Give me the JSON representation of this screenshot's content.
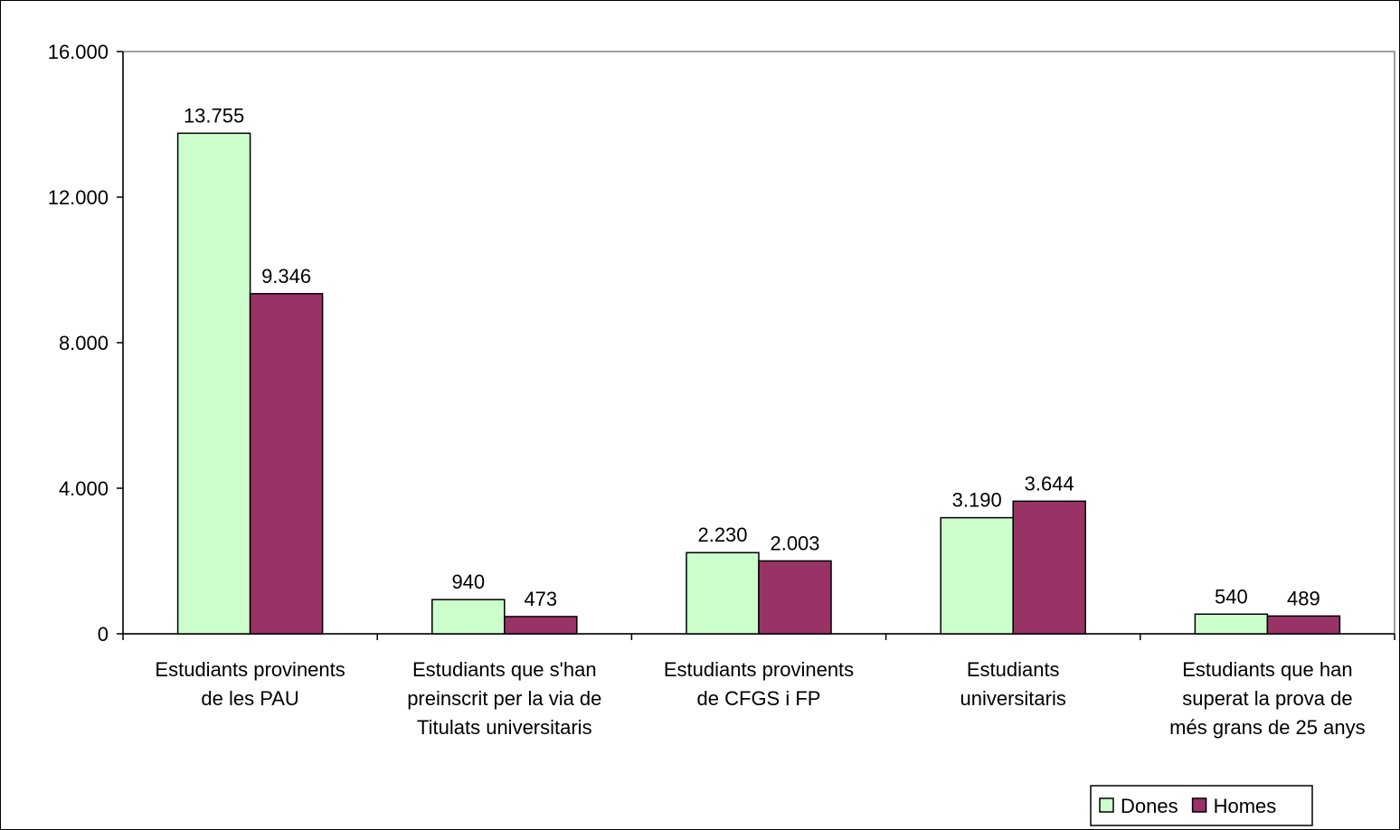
{
  "chart_data": {
    "type": "bar",
    "categories": [
      [
        "Estudiants provinents",
        "de les PAU"
      ],
      [
        "Estudiants que s'han",
        "preinscrit per la via de",
        "Titulats universitaris"
      ],
      [
        "Estudiants provinents",
        "de CFGS i FP"
      ],
      [
        "Estudiants",
        "universitaris"
      ],
      [
        "Estudiants que han",
        "superat la prova de",
        "més grans de 25 anys"
      ]
    ],
    "series": [
      {
        "name": "Dones",
        "color": "#ccffcc",
        "values": [
          13755,
          940,
          2230,
          3190,
          540
        ],
        "labels": [
          "13.755",
          "940",
          "2.230",
          "3.190",
          "540"
        ]
      },
      {
        "name": "Homes",
        "color": "#993366",
        "values": [
          9346,
          473,
          2003,
          3644,
          489
        ],
        "labels": [
          "9.346",
          "473",
          "2.003",
          "3.644",
          "489"
        ]
      }
    ],
    "ylim": [
      0,
      16000
    ],
    "yticks": [
      0,
      4000,
      8000,
      12000,
      16000
    ],
    "ytick_labels": [
      "0",
      "4.000",
      "8.000",
      "12.000",
      "16.000"
    ],
    "title": "",
    "xlabel": "",
    "ylabel": "",
    "grid": false,
    "legend_position": "bottom-right"
  }
}
